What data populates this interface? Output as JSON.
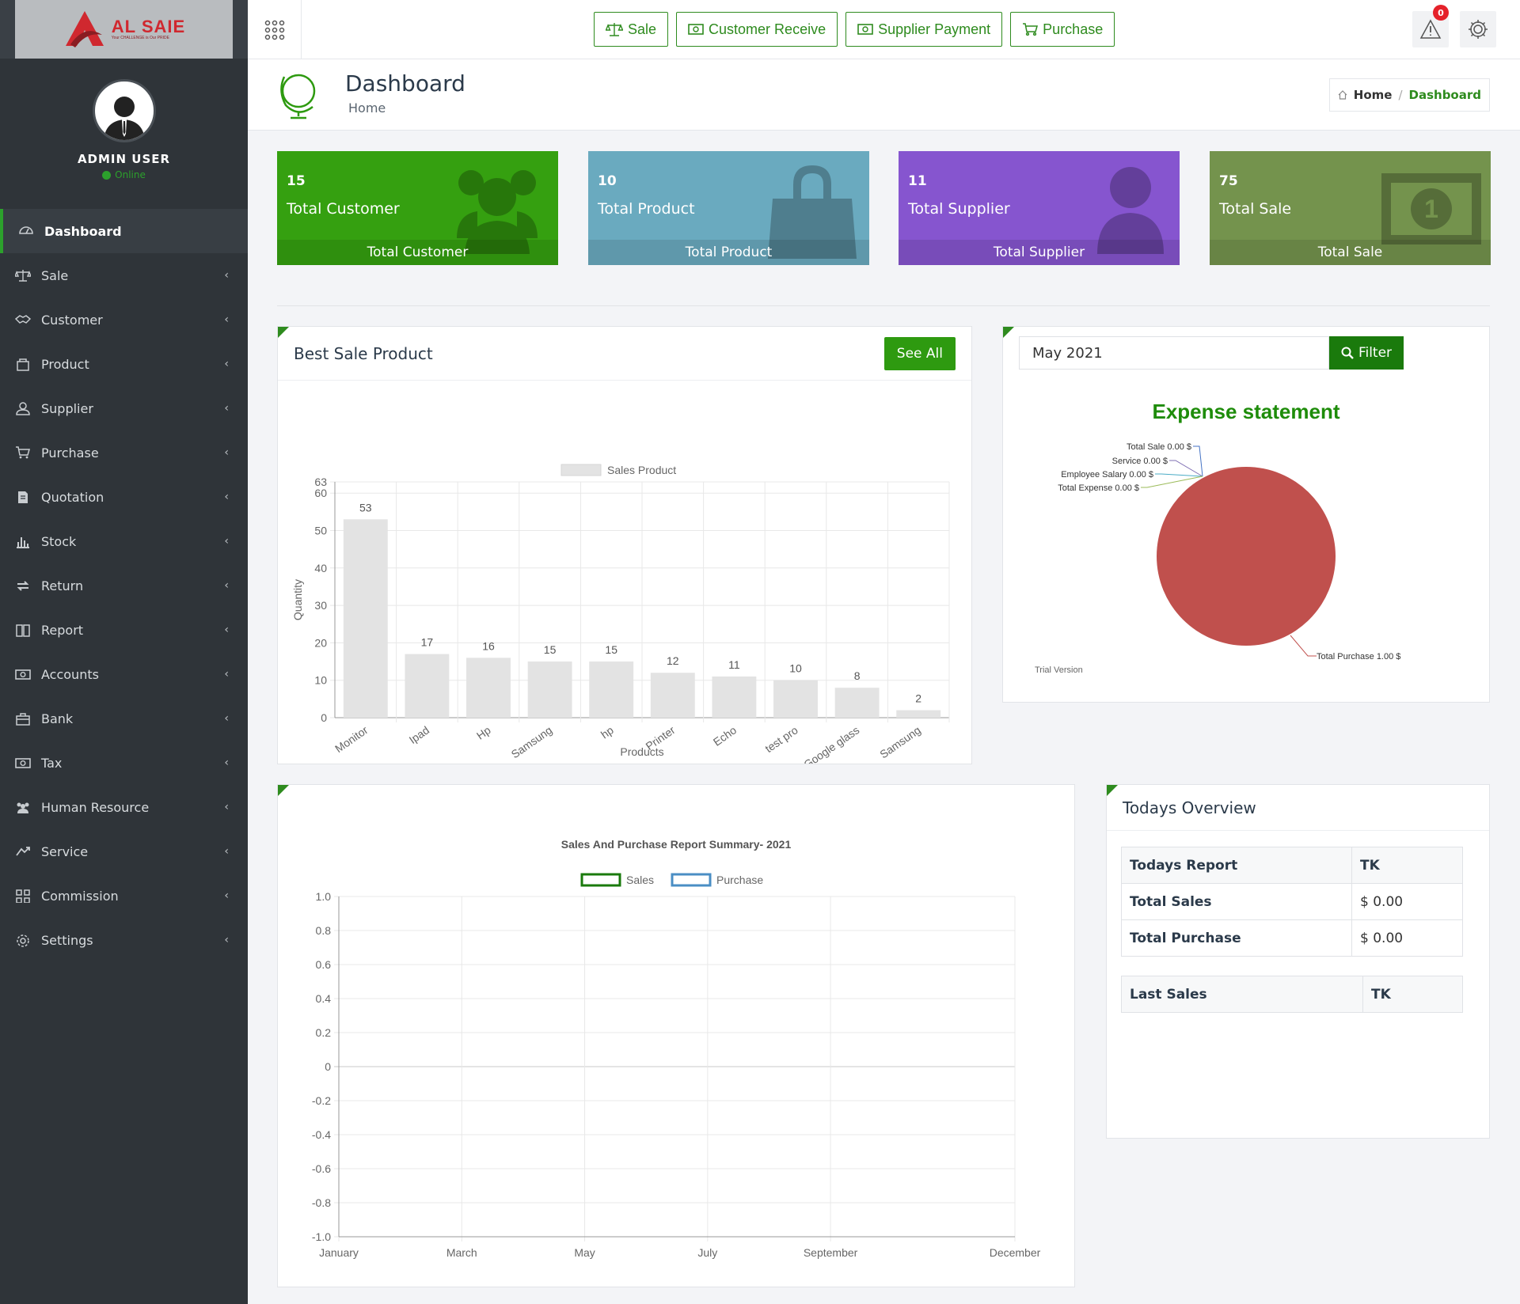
{
  "brand": {
    "name": "AL SAIE",
    "tagline": "Your CHALLENGE is Our PRIDE"
  },
  "user": {
    "name": "ADMIN USER",
    "status": "Online"
  },
  "sidebar": {
    "items": [
      {
        "label": "Dashboard",
        "icon": "dashboard-icon"
      },
      {
        "label": "Sale",
        "icon": "scale-icon"
      },
      {
        "label": "Customer",
        "icon": "handshake-icon"
      },
      {
        "label": "Product",
        "icon": "box-icon"
      },
      {
        "label": "Supplier",
        "icon": "user-icon"
      },
      {
        "label": "Purchase",
        "icon": "cart-icon"
      },
      {
        "label": "Quotation",
        "icon": "document-icon"
      },
      {
        "label": "Stock",
        "icon": "bar-chart-icon"
      },
      {
        "label": "Return",
        "icon": "return-icon"
      },
      {
        "label": "Report",
        "icon": "book-icon"
      },
      {
        "label": "Accounts",
        "icon": "money-icon"
      },
      {
        "label": "Bank",
        "icon": "briefcase-icon"
      },
      {
        "label": "Tax",
        "icon": "money-icon"
      },
      {
        "label": "Human Resource",
        "icon": "users-icon"
      },
      {
        "label": "Service",
        "icon": "service-icon"
      },
      {
        "label": "Commission",
        "icon": "grid-icon"
      },
      {
        "label": "Settings",
        "icon": "gear-icon"
      }
    ]
  },
  "topbar": {
    "buttons": [
      "Sale",
      "Customer Receive",
      "Supplier Payment",
      "Purchase"
    ],
    "notification_count": "0"
  },
  "page": {
    "title": "Dashboard",
    "subtitle": "Home"
  },
  "breadcrumb": {
    "home": "Home",
    "sep": "/",
    "current": "Dashboard"
  },
  "stats": [
    {
      "value": "15",
      "label": "Total Customer",
      "footer": "Total Customer",
      "color": "#35a010"
    },
    {
      "value": "10",
      "label": "Total Product",
      "footer": "Total Product",
      "color": "#6aaabf"
    },
    {
      "value": "11",
      "label": "Total Supplier",
      "footer": "Total Supplier",
      "color": "#8655cf"
    },
    {
      "value": "75",
      "label": "Total Sale",
      "footer": "Total Sale",
      "color": "#74934d"
    }
  ],
  "best_sale": {
    "title": "Best Sale Product",
    "see_all": "See All"
  },
  "expense": {
    "filter_value": "May 2021",
    "filter_label": "Filter",
    "title": "Expense statement",
    "watermark": "Trial Version"
  },
  "overview": {
    "title": "Todays Overview",
    "rows": [
      {
        "label": "Todays Report",
        "value": "TK"
      },
      {
        "label": "Total Sales",
        "value": "$ 0.00"
      },
      {
        "label": "Total Purchase",
        "value": "$ 0.00"
      }
    ],
    "last_sales": {
      "label": "Last Sales",
      "value": "TK"
    }
  },
  "chart_data": [
    {
      "type": "bar",
      "legend": "Sales Product",
      "xlabel": "Products",
      "ylabel": "Quantity",
      "categories": [
        "Monitor",
        "Ipad",
        "Hp",
        "Samsung",
        "hp",
        "Printer",
        "Echo",
        "test pro",
        "Google glass",
        "Samsung"
      ],
      "values": [
        53,
        17,
        16,
        15,
        15,
        12,
        11,
        10,
        8,
        2
      ],
      "ylim": [
        0,
        63
      ],
      "yticks": [
        0,
        10,
        20,
        30,
        40,
        50,
        60,
        63
      ],
      "color": "#e3e3e3"
    },
    {
      "type": "pie",
      "title": "Expense statement",
      "slices": [
        {
          "label": "Total Sale",
          "text": "Total Sale 0.00 $",
          "value": 0
        },
        {
          "label": "Service",
          "text": "Service  0.00 $",
          "value": 0
        },
        {
          "label": "Employee Salary",
          "text": "Employee Salary 0.00 $",
          "value": 0
        },
        {
          "label": "Total Expense",
          "text": "Total Expense 0.00 $",
          "value": 0
        },
        {
          "label": "Total Purchase",
          "text": "Total Purchase 1.00 $",
          "value": 1
        }
      ],
      "color": "#c0504d"
    },
    {
      "type": "line",
      "title": "Sales And Purchase Report Summary- 2021",
      "series": [
        {
          "name": "Sales",
          "values": [],
          "color": "#1a7a0c"
        },
        {
          "name": "Purchase",
          "values": [],
          "color": "#4a8ec4"
        }
      ],
      "x_ticks": [
        "January",
        "March",
        "May",
        "July",
        "September",
        "December"
      ],
      "yticks": [
        1.0,
        0.8,
        0.6,
        0.4,
        0.2,
        0,
        -0.2,
        -0.4,
        -0.6,
        -0.8,
        -1.0
      ],
      "ylim": [
        -1.0,
        1.0
      ]
    }
  ]
}
